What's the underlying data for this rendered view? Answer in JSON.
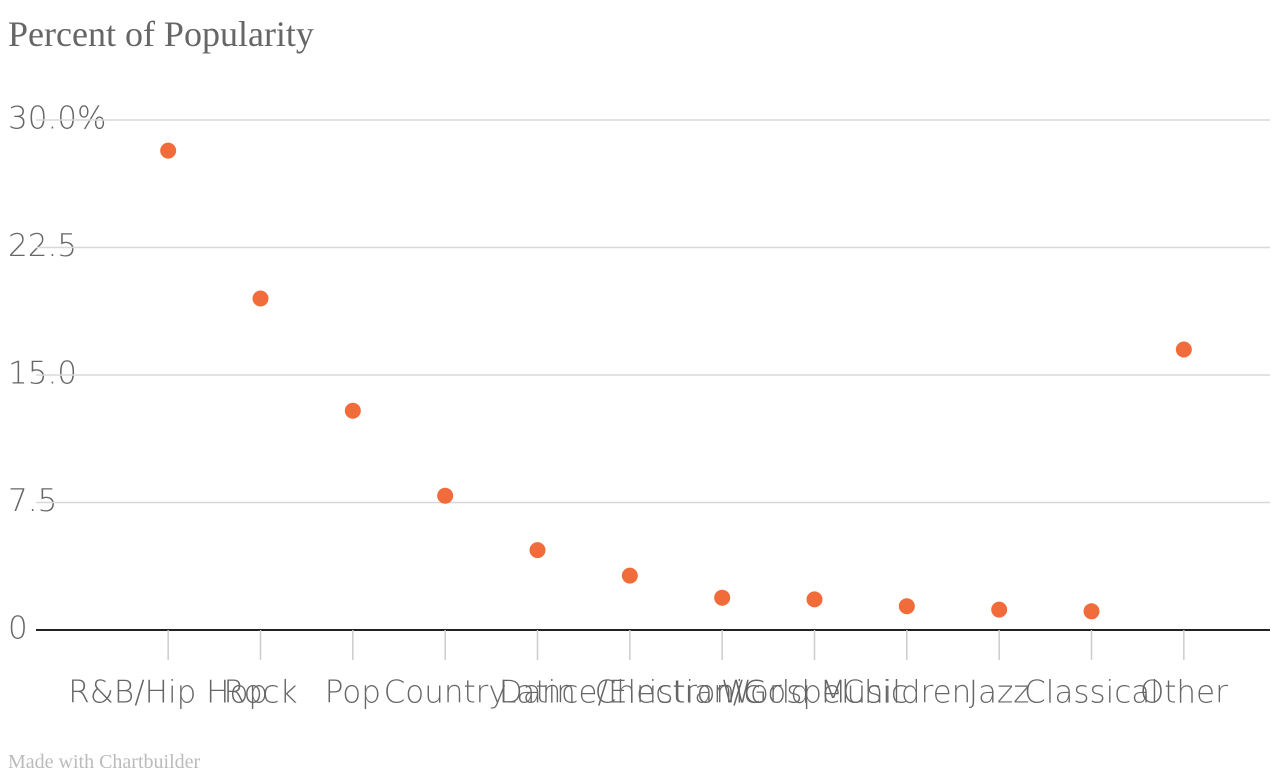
{
  "chart_data": {
    "type": "scatter",
    "title": "Percent of Popularity",
    "categories": [
      "R&B/Hip Hop",
      "Rock",
      "Pop",
      "Country",
      "Latin",
      "Dance/Electronic",
      "Christian/Gospel",
      "World Music",
      "Children",
      "Jazz",
      "Classical",
      "Other"
    ],
    "values": [
      28.2,
      19.5,
      12.9,
      7.9,
      4.7,
      3.2,
      1.9,
      1.8,
      1.4,
      1.2,
      1.1,
      16.5
    ],
    "color": "#f26b3a",
    "ylim": [
      0,
      30
    ],
    "yticks": [
      0,
      7.5,
      {
        "value": 15,
        "label": "15.0"
      },
      {
        "value": 22.5,
        "label": "22.5"
      },
      {
        "value": 30,
        "label": "30.0%"
      }
    ],
    "grid": true,
    "credit": "Made with Chartbuilder"
  }
}
